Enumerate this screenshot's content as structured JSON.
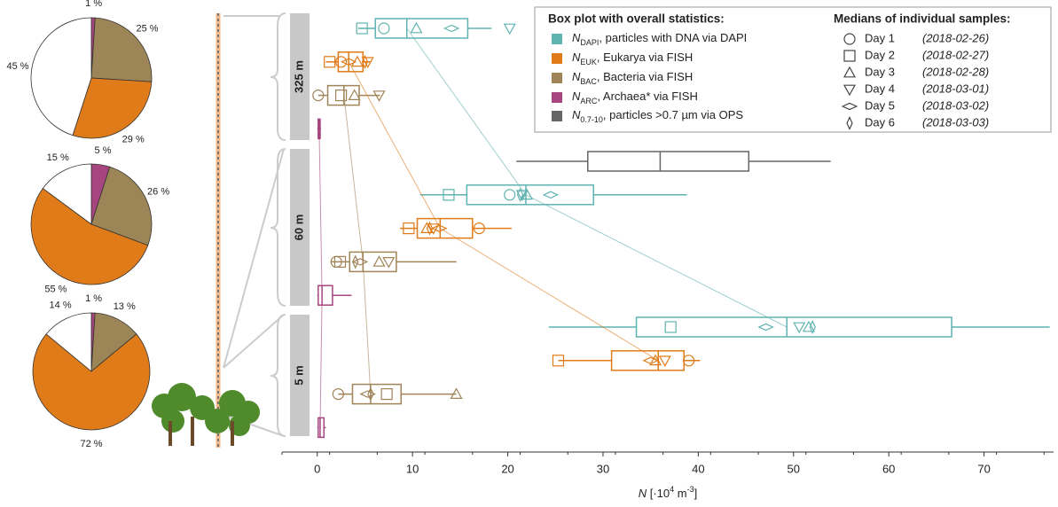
{
  "chart_data": {
    "type": "boxplot",
    "xlabel": {
      "symbol": "N",
      "unit_open": " [·10",
      "exp1": "4",
      "unit_mid": " m",
      "exp2": "-3",
      "unit_close": "]"
    },
    "xlim": [
      -3.7,
      77.3
    ],
    "xticks": [
      0,
      10,
      20,
      30,
      40,
      50,
      60,
      70
    ],
    "legend_title": "Box plot with overall statistics:",
    "samples_title": "Medians of individual samples:",
    "series": [
      {
        "symbol": "N",
        "sub": "DAPI",
        "desc": ", particles with DNA via DAPI",
        "color": "#5fb3b0"
      },
      {
        "symbol": "N",
        "sub": "EUK",
        "desc": ", Eukarya via FISH",
        "color": "#e07b1a"
      },
      {
        "symbol": "N",
        "sub": "BAC",
        "desc": ", Bacteria via FISH",
        "color": "#a08458"
      },
      {
        "symbol": "N",
        "sub": "ARC",
        "desc": ", Archaea* via FISH",
        "color": "#a6457f"
      },
      {
        "symbol": "N",
        "sub": "0.7-10",
        "desc": ", particles >0.7 µm via OPS",
        "color": "#666666"
      }
    ],
    "days": [
      {
        "label": "Day 1",
        "date": "(2018-02-26)",
        "marker": "circle"
      },
      {
        "label": "Day 2",
        "date": "(2018-02-27)",
        "marker": "square"
      },
      {
        "label": "Day 3",
        "date": "(2018-02-28)",
        "marker": "triangle-up"
      },
      {
        "label": "Day 4",
        "date": "(2018-03-01)",
        "marker": "triangle-down"
      },
      {
        "label": "Day 5",
        "date": "(2018-03-02)",
        "marker": "diamond-wide"
      },
      {
        "label": "Day 6",
        "date": "(2018-03-03)",
        "marker": "diamond-tall"
      }
    ],
    "altitudes": [
      {
        "label": "325 m",
        "pie": {
          "values": [
            1,
            25,
            29,
            45
          ],
          "value_labels": [
            "1 %",
            "25 %",
            "29 %",
            "45 %"
          ],
          "colors": [
            "#a6457f",
            "#9c8557",
            "#e07b1a",
            "#ffffff"
          ]
        },
        "boxes": [
          {
            "series": 0,
            "stats": [
              4.3,
              6.1,
              9.4,
              15.8,
              18.3
            ],
            "samples": [
              7.0,
              4.7,
              10.4,
              20.2,
              14.1,
              null
            ]
          },
          {
            "series": 1,
            "stats": [
              0.9,
              2.2,
              3.3,
              4.8,
              5.6
            ],
            "samples": [
              2.5,
              1.3,
              4.2,
              5.3,
              3.3,
              5.0
            ]
          },
          {
            "series": 2,
            "stats": [
              0.1,
              1.1,
              2.8,
              4.4,
              6.6
            ],
            "samples": [
              0.1,
              2.5,
              3.9,
              6.5,
              null,
              null
            ]
          },
          {
            "series": 3,
            "stats": [
              0,
              0.1,
              0.2,
              0.3,
              0.4
            ],
            "samples": [
              null,
              null,
              null,
              null,
              null,
              null
            ]
          }
        ]
      },
      {
        "label": "60 m",
        "pie": {
          "values": [
            5,
            26,
            55,
            15
          ],
          "value_labels": [
            "5 %",
            "26 %",
            "55 %",
            "15 %"
          ],
          "colors": [
            "#a6457f",
            "#9c8557",
            "#e07b1a",
            "#ffffff"
          ]
        },
        "boxes": [
          {
            "series": 4,
            "stats": [
              20.9,
              28.4,
              36.0,
              45.3,
              53.9
            ],
            "samples": [
              null,
              null,
              null,
              null,
              null,
              null
            ]
          },
          {
            "series": 0,
            "stats": [
              10.8,
              15.7,
              21.9,
              29.0,
              38.8
            ],
            "samples": [
              20.2,
              13.8,
              22.0,
              21.5,
              24.5,
              21.3
            ]
          },
          {
            "series": 1,
            "stats": [
              8.7,
              10.5,
              12.9,
              16.3,
              20.4
            ],
            "samples": [
              17.0,
              9.6,
              11.5,
              12.2,
              12.8,
              11.8
            ]
          },
          {
            "series": 2,
            "stats": [
              1.4,
              3.4,
              4.8,
              8.3,
              14.6
            ],
            "samples": [
              2.0,
              2.4,
              6.5,
              7.5,
              4.5,
              4.0
            ]
          },
          {
            "series": 3,
            "stats": [
              0,
              0.1,
              0.5,
              1.6,
              3.6
            ],
            "samples": [
              null,
              null,
              null,
              null,
              null,
              null
            ]
          }
        ]
      },
      {
        "label": "5 m",
        "pie": {
          "values": [
            1,
            13,
            72,
            14
          ],
          "value_labels": [
            "1 %",
            "13 %",
            "72 %",
            "14 %"
          ],
          "colors": [
            "#a6457f",
            "#9c8557",
            "#e07b1a",
            "#ffffff"
          ]
        },
        "boxes": [
          {
            "series": 0,
            "stats": [
              24.3,
              33.5,
              49.3,
              66.6,
              76.9
            ],
            "samples": [
              null,
              37.1,
              51.6,
              50.6,
              47.1,
              52.0
            ]
          },
          {
            "series": 1,
            "stats": [
              25.3,
              30.9,
              35.8,
              38.5,
              40.2
            ],
            "samples": [
              39.0,
              25.3,
              35.5,
              36.5,
              35.0,
              null
            ]
          },
          {
            "series": 2,
            "stats": [
              2.2,
              3.7,
              5.6,
              8.8,
              14.6
            ],
            "samples": [
              2.2,
              7.3,
              14.6,
              null,
              5.3,
              5.6
            ]
          },
          {
            "series": 3,
            "stats": [
              0,
              0.1,
              0.3,
              0.7,
              0.9
            ],
            "samples": [
              null,
              null,
              null,
              null,
              null,
              null
            ]
          }
        ]
      }
    ]
  }
}
